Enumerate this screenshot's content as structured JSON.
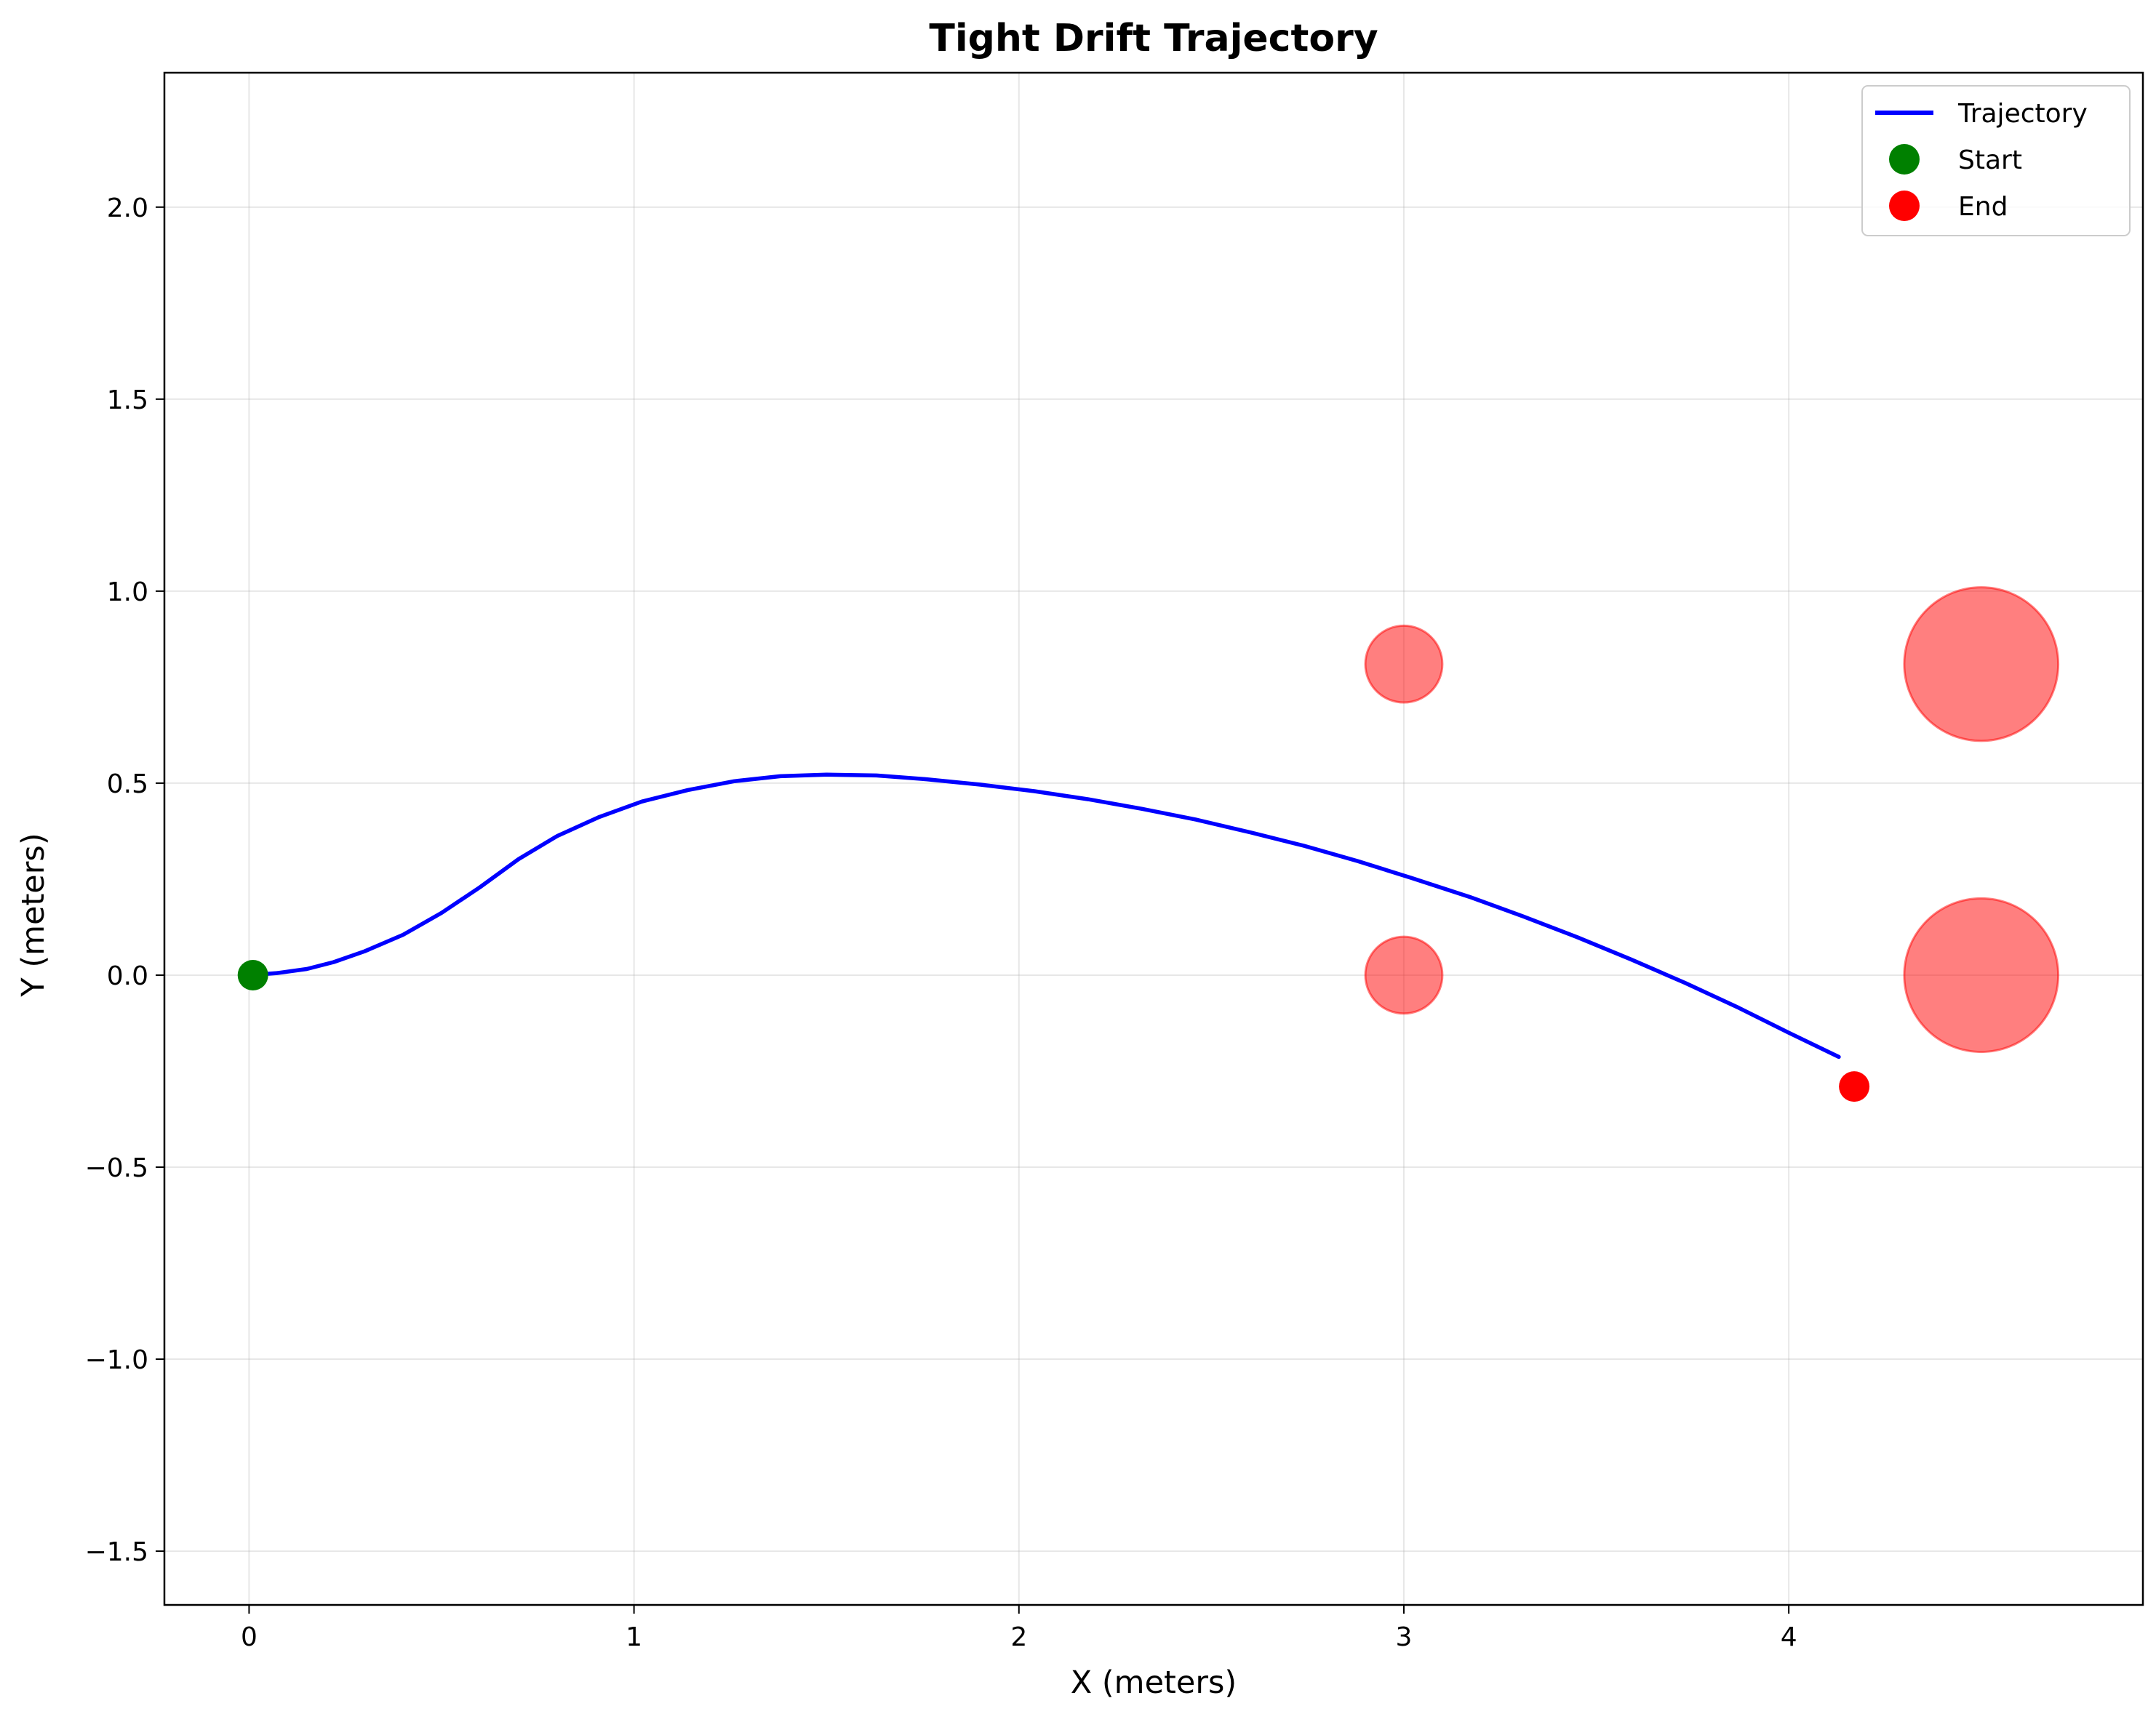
{
  "chart_data": {
    "type": "line",
    "title": "Tight Drift Trajectory",
    "xlabel": "X (meters)",
    "ylabel": "Y (meters)",
    "xlim": [
      -0.22,
      4.92
    ],
    "ylim": [
      -1.64,
      2.35
    ],
    "xticks": [
      0,
      1,
      2,
      3,
      4
    ],
    "xtick_labels": [
      "0",
      "1",
      "2",
      "3",
      "4"
    ],
    "yticks": [
      -1.5,
      -1.0,
      -0.5,
      0.0,
      0.5,
      1.0,
      1.5,
      2.0
    ],
    "ytick_labels": [
      "−1.5",
      "−1.0",
      "−0.5",
      "0.0",
      "0.5",
      "1.0",
      "1.5",
      "2.0"
    ],
    "grid": true,
    "legend_position": "top-right",
    "legend": [
      "Trajectory",
      "Start",
      "End"
    ],
    "series": [
      {
        "name": "Trajectory",
        "color": "#0000ff",
        "x": [
          0.0,
          0.07,
          0.15,
          0.22,
          0.3,
          0.4,
          0.5,
          0.6,
          0.7,
          0.8,
          0.91,
          1.02,
          1.14,
          1.26,
          1.38,
          1.5,
          1.63,
          1.76,
          1.9,
          2.04,
          2.18,
          2.32,
          2.46,
          2.6,
          2.74,
          2.88,
          3.02,
          3.17,
          3.31,
          3.45,
          3.59,
          3.73,
          3.87,
          4.0,
          4.13
        ],
        "y": [
          0.0,
          0.005,
          0.016,
          0.034,
          0.062,
          0.105,
          0.162,
          0.229,
          0.302,
          0.362,
          0.412,
          0.452,
          0.482,
          0.505,
          0.518,
          0.522,
          0.52,
          0.51,
          0.496,
          0.479,
          0.458,
          0.433,
          0.405,
          0.372,
          0.337,
          0.297,
          0.253,
          0.204,
          0.153,
          0.099,
          0.041,
          -0.02,
          -0.085,
          -0.15,
          -0.213
        ]
      }
    ],
    "markers": [
      {
        "name": "Start",
        "x": 0.01,
        "y": 0.0,
        "color": "#008000"
      },
      {
        "name": "End",
        "x": 4.17,
        "y": -0.29,
        "color": "#ff0000"
      }
    ],
    "obstacles": [
      {
        "x": 3.0,
        "y": 0.81,
        "r": 0.1,
        "color": "#ff0000",
        "alpha": 0.5
      },
      {
        "x": 3.0,
        "y": 0.0,
        "r": 0.1,
        "color": "#ff0000",
        "alpha": 0.5
      },
      {
        "x": 4.5,
        "y": 0.81,
        "r": 0.2,
        "color": "#ff0000",
        "alpha": 0.5
      },
      {
        "x": 4.5,
        "y": 0.0,
        "r": 0.2,
        "color": "#ff0000",
        "alpha": 0.5
      }
    ]
  }
}
